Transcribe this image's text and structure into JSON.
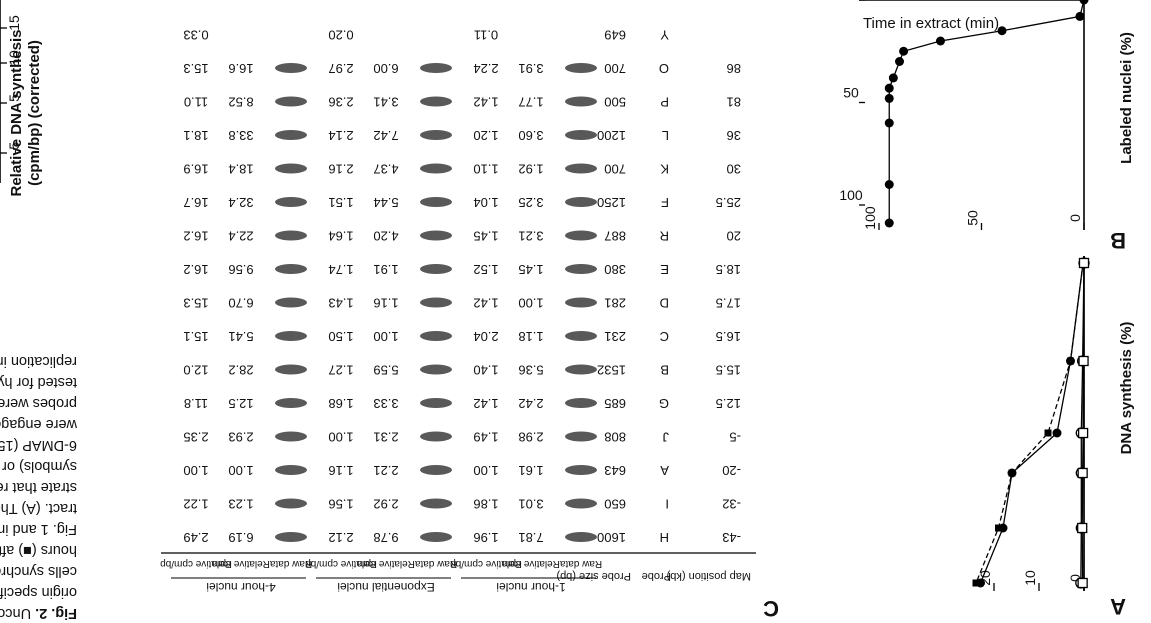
{
  "panel_a": {
    "letter": "A",
    "ylabel": "DNA synthesis (%)",
    "y_ticks": [
      "0",
      "10",
      "20"
    ],
    "chart_data": {
      "type": "line",
      "ylabel": "DNA synthesis (%)",
      "ylim": [
        0,
        25
      ],
      "series": [
        {
          "marker": "filled-circle",
          "values": [
            0.2,
            3,
            6,
            16,
            18,
            23
          ]
        },
        {
          "marker": "filled-square",
          "values": [
            0.2,
            3,
            8,
            16,
            19,
            24
          ]
        },
        {
          "marker": "open-circle",
          "values": [
            0,
            0.3,
            0.6,
            0.6,
            0.6,
            0.7
          ]
        },
        {
          "marker": "open-square",
          "values": [
            0,
            0.1,
            0.2,
            0.3,
            0.4,
            0.3
          ]
        }
      ]
    }
  },
  "panel_b": {
    "letter": "B",
    "ylabel": "Labeled nuclei (%)",
    "xlabel": "Time in extract (min)",
    "y_ticks": [
      "0",
      "50",
      "100"
    ],
    "x_ticks": [
      "0",
      "50",
      "100"
    ],
    "chart_data": {
      "type": "line",
      "xlabel": "Time in extract (min)",
      "ylabel": "Labeled nuclei (%)",
      "xlim": [
        0,
        110
      ],
      "ylim": [
        0,
        110
      ],
      "series": [
        {
          "marker": "filled-circle",
          "x": [
            0,
            8,
            15,
            20,
            25,
            30,
            38,
            43,
            48,
            60,
            90,
            120
          ],
          "values": [
            0,
            2,
            40,
            70,
            88,
            90,
            93,
            95,
            95,
            95,
            95,
            95
          ]
        }
      ]
    }
  },
  "panel_c": {
    "letter": "C",
    "header": {
      "map_position": "Map position (kb)",
      "probe": "Probe",
      "probe_size": "Probe size (bp)",
      "group_1hr": "1-hour nuclei",
      "group_exp": "Exponential nuclei",
      "group_4hr": "4-hour nuclei",
      "raw_data": "Raw data",
      "relative_cpm": "Relative cpm",
      "relative_cpm_bp": "Relative cpm/bp"
    },
    "rows": [
      {
        "pos": "-43",
        "probe": "H",
        "size": "1600",
        "h1_cpm": "7.81",
        "h1_bp": "1.96",
        "ex_cpm": "9.78",
        "ex_bp": "2.12",
        "h4_cpm": "6.19",
        "h4_bp": "2.49"
      },
      {
        "pos": "-32",
        "probe": "I",
        "size": "650",
        "h1_cpm": "3.01",
        "h1_bp": "1.86",
        "ex_cpm": "2.92",
        "ex_bp": "1.56",
        "h4_cpm": "1.23",
        "h4_bp": "1.22"
      },
      {
        "pos": "-20",
        "probe": "A",
        "size": "643",
        "h1_cpm": "1.61",
        "h1_bp": "1.00",
        "ex_cpm": "2.21",
        "ex_bp": "1.16",
        "h4_cpm": "1.00",
        "h4_bp": "1.00"
      },
      {
        "pos": "-5",
        "probe": "J",
        "size": "808",
        "h1_cpm": "2.98",
        "h1_bp": "1.49",
        "ex_cpm": "2.31",
        "ex_bp": "1.00",
        "h4_cpm": "2.93",
        "h4_bp": "2.35"
      },
      {
        "pos": "12.5",
        "probe": "G",
        "size": "685",
        "h1_cpm": "2.42",
        "h1_bp": "1.42",
        "ex_cpm": "3.33",
        "ex_bp": "1.68",
        "h4_cpm": "12.5",
        "h4_bp": "11.8"
      },
      {
        "pos": "15.5",
        "probe": "B",
        "size": "1532",
        "h1_cpm": "5.36",
        "h1_bp": "1.40",
        "ex_cpm": "5.59",
        "ex_bp": "1.27",
        "h4_cpm": "28.2",
        "h4_bp": "12.0"
      },
      {
        "pos": "16.5",
        "probe": "C",
        "size": "231",
        "h1_cpm": "1.18",
        "h1_bp": "2.04",
        "ex_cpm": "1.00",
        "ex_bp": "1.50",
        "h4_cpm": "5.41",
        "h4_bp": "15.1"
      },
      {
        "pos": "17.5",
        "probe": "D",
        "size": "281",
        "h1_cpm": "1.00",
        "h1_bp": "1.42",
        "ex_cpm": "1.16",
        "ex_bp": "1.43",
        "h4_cpm": "6.70",
        "h4_bp": "15.3"
      },
      {
        "pos": "18.5",
        "probe": "E",
        "size": "380",
        "h1_cpm": "1.45",
        "h1_bp": "1.52",
        "ex_cpm": "1.91",
        "ex_bp": "1.74",
        "h4_cpm": "9.56",
        "h4_bp": "16.2"
      },
      {
        "pos": "20",
        "probe": "R",
        "size": "887",
        "h1_cpm": "3.21",
        "h1_bp": "1.45",
        "ex_cpm": "4.20",
        "ex_bp": "1.64",
        "h4_cpm": "22.4",
        "h4_bp": "16.2"
      },
      {
        "pos": "25.5",
        "probe": "F",
        "size": "1250",
        "h1_cpm": "3.25",
        "h1_bp": "1.04",
        "ex_cpm": "5.44",
        "ex_bp": "1.51",
        "h4_cpm": "32.4",
        "h4_bp": "16.7"
      },
      {
        "pos": "30",
        "probe": "K",
        "size": "700",
        "h1_cpm": "1.92",
        "h1_bp": "1.10",
        "ex_cpm": "4.37",
        "ex_bp": "2.16",
        "h4_cpm": "18.4",
        "h4_bp": "16.9"
      },
      {
        "pos": "36",
        "probe": "L",
        "size": "1200",
        "h1_cpm": "3.60",
        "h1_bp": "1.20",
        "ex_cpm": "7.42",
        "ex_bp": "2.14",
        "h4_cpm": "33.8",
        "h4_bp": "18.1"
      },
      {
        "pos": "81",
        "probe": "P",
        "size": "500",
        "h1_cpm": "1.77",
        "h1_bp": "1.42",
        "ex_cpm": "3.41",
        "ex_bp": "2.36",
        "h4_cpm": "8.52",
        "h4_bp": "11.0"
      },
      {
        "pos": "86",
        "probe": "O",
        "size": "700",
        "h1_cpm": "3.91",
        "h1_bp": "2.24",
        "ex_cpm": "6.00",
        "ex_bp": "2.97",
        "h4_cpm": "16.6",
        "h4_bp": "15.3"
      },
      {
        "pos": "",
        "probe": "Y",
        "size": "649",
        "h1_cpm": "",
        "h1_bp": "0.11",
        "ex_cpm": "",
        "ex_bp": "0.20",
        "h4_cpm": "",
        "h4_bp": "0.33"
      }
    ]
  },
  "caption_lines": [
    {
      "bold": "Fig. 2.",
      "text": " Uncoupli"
    },
    {
      "bold": "",
      "text": "origin specifica"
    },
    {
      "bold": "",
      "text": "cells synchroniz"
    },
    {
      "bold": "",
      "text": "hours (■) after n"
    },
    {
      "bold": "",
      "text": "Fig. 1 and intro"
    },
    {
      "bold": "",
      "text": "tract. (A) The p"
    },
    {
      "bold": "",
      "text": "strate that repli"
    },
    {
      "bold": "",
      "text": "symbols) or ab"
    },
    {
      "bold": "",
      "text": "6-DMAP (15). (B"
    },
    {
      "bold": "",
      "text": "were engaged i"
    },
    {
      "bold": "",
      "text": "probes were in"
    },
    {
      "bold": "",
      "text": "tested for hybri"
    },
    {
      "bold": "",
      "text": "replication into"
    }
  ],
  "panel_d_partial": {
    "ylabel_1": "Relative DNA synthesis",
    "ylabel_2": "(cpm/bp) (corrected)",
    "ticks": [
      "15",
      "10",
      "5",
      "-5"
    ]
  }
}
